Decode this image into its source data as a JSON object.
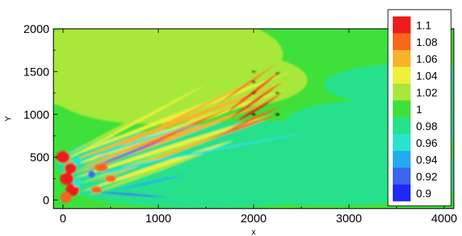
{
  "chart_data": {
    "type": "heatmap",
    "title": "",
    "xlabel": "x",
    "ylabel": "Y",
    "xlim": [
      -100,
      4100
    ],
    "ylim": [
      -100,
      2000
    ],
    "x_ticks": [
      "0",
      "1000",
      "2000",
      "3000",
      "4000"
    ],
    "x_tick_values": [
      0,
      1000,
      2000,
      3000,
      4000
    ],
    "y_ticks": [
      "0",
      "500",
      "1000",
      "1500",
      "2000"
    ],
    "y_tick_values": [
      0,
      500,
      1000,
      1500,
      2000
    ],
    "colorbar": {
      "levels": [
        "1.1",
        "1.08",
        "1.06",
        "1.04",
        "1.02",
        "1",
        "0.98",
        "0.96",
        "0.94",
        "0.92",
        "0.9"
      ],
      "colors": [
        "#ee1c1c",
        "#f7661a",
        "#f8b32a",
        "#ecf23a",
        "#a8e83a",
        "#3fe03a",
        "#27e08c",
        "#2be3cc",
        "#25a9f0",
        "#3a65f0",
        "#1f28f5"
      ]
    },
    "background_level": 1,
    "annotations": "Multiple diverging ray-like high-value streaks (>1.06) emanating from sources near x≈0-250, y≈0-500 and fanning to x≈2400, y≈1000-1500; low-value (<0.96) streaks between them.",
    "grid": false
  }
}
